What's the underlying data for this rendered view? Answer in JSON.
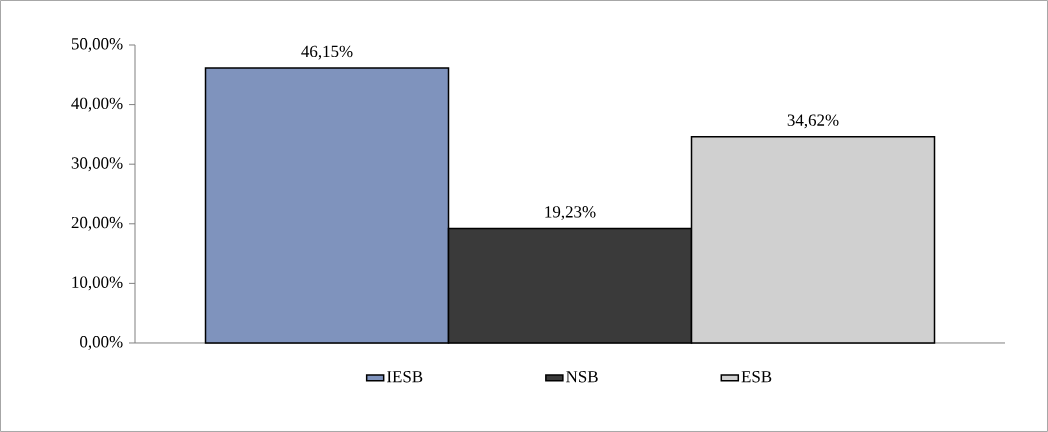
{
  "chart_data": {
    "type": "bar",
    "categories": [
      null
    ],
    "series": [
      {
        "name": "IESB",
        "color": "#7f93bd",
        "values": [
          46.15
        ],
        "value_labels": [
          "46,15%"
        ]
      },
      {
        "name": "NSB",
        "color": "#3a3a3a",
        "values": [
          19.23
        ],
        "value_labels": [
          "19,23%"
        ]
      },
      {
        "name": "ESB",
        "color": "#d0d0d0",
        "values": [
          34.62
        ],
        "value_labels": [
          "34,62%"
        ]
      }
    ],
    "ylim": [
      0,
      50
    ],
    "yticks": [
      {
        "value": 0,
        "label": "0,00%"
      },
      {
        "value": 10,
        "label": "10,00%"
      },
      {
        "value": 20,
        "label": "20,00%"
      },
      {
        "value": 30,
        "label": "30,00%"
      },
      {
        "value": 40,
        "label": "40,00%"
      },
      {
        "value": 50,
        "label": "50,00%"
      }
    ],
    "grid": false,
    "legend": "bottom"
  }
}
